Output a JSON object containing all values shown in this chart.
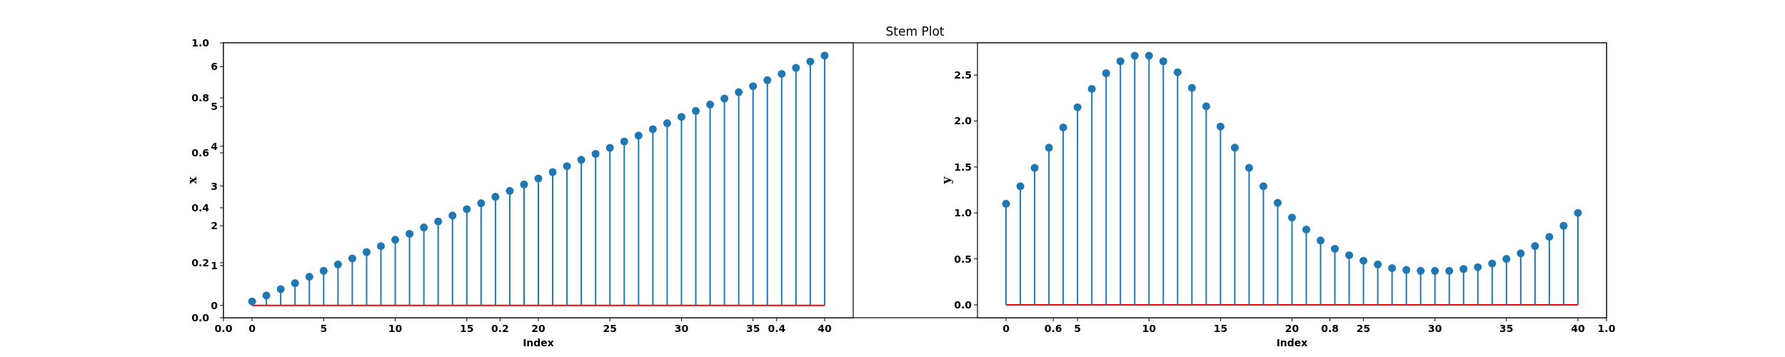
{
  "chart_data": [
    {
      "type": "scatter",
      "title": "Stem Plot",
      "xlim": [
        0,
        1
      ],
      "ylim": [
        0,
        1
      ],
      "xticks": [
        {
          "value": 0,
          "label": "0.0"
        },
        {
          "value": 0.2,
          "label": "0.2"
        },
        {
          "value": 0.4,
          "label": "0.4"
        },
        {
          "value": 0.6,
          "label": "0.6"
        },
        {
          "value": 0.8,
          "label": "0.8"
        },
        {
          "value": 1,
          "label": "1.0"
        }
      ],
      "yticks": [
        {
          "value": 0,
          "label": "0.0"
        },
        {
          "value": 0.2,
          "label": "0.2"
        },
        {
          "value": 0.4,
          "label": "0.4"
        },
        {
          "value": 0.6,
          "label": "0.6"
        },
        {
          "value": 0.8,
          "label": "0.8"
        },
        {
          "value": 1,
          "label": "1.0"
        }
      ]
    },
    {
      "type": "lollipop",
      "xlabel": "Index",
      "ylabel": "x",
      "marker": "circle",
      "x": [
        0,
        1,
        2,
        3,
        4,
        5,
        6,
        7,
        8,
        9,
        10,
        11,
        12,
        13,
        14,
        15,
        16,
        17,
        18,
        19,
        20,
        21,
        22,
        23,
        24,
        25,
        26,
        27,
        28,
        29,
        30,
        31,
        32,
        33,
        34,
        35,
        36,
        37,
        38,
        39,
        40
      ],
      "series": [
        {
          "color": "#1f77b4",
          "values": [
            0.1,
            0.25,
            0.41,
            0.56,
            0.72,
            0.87,
            1.03,
            1.18,
            1.34,
            1.49,
            1.65,
            1.8,
            1.96,
            2.11,
            2.26,
            2.42,
            2.57,
            2.73,
            2.88,
            3.04,
            3.19,
            3.35,
            3.5,
            3.66,
            3.81,
            3.96,
            4.12,
            4.27,
            4.43,
            4.58,
            4.74,
            4.89,
            5.05,
            5.2,
            5.36,
            5.51,
            5.66,
            5.82,
            5.97,
            6.13,
            6.28
          ]
        }
      ],
      "xlim": [
        -2,
        42
      ],
      "xticks": [
        0,
        5,
        10,
        15,
        20,
        25,
        30,
        35,
        40
      ],
      "ylim": [
        -0.31,
        6.6
      ],
      "yticks": [
        0,
        1,
        2,
        3,
        4,
        5,
        6
      ],
      "ref_lines": [
        {
          "axis": "y",
          "value": 0,
          "color": "#ff0000"
        }
      ]
    },
    {
      "type": "lollipop",
      "xlabel": "Index",
      "ylabel": "y",
      "marker": "circle",
      "x": [
        0,
        1,
        2,
        3,
        4,
        5,
        6,
        7,
        8,
        9,
        10,
        11,
        12,
        13,
        14,
        15,
        16,
        17,
        18,
        19,
        20,
        21,
        22,
        23,
        24,
        25,
        26,
        27,
        28,
        29,
        30,
        31,
        32,
        33,
        34,
        35,
        36,
        37,
        38,
        39,
        40
      ],
      "series": [
        {
          "color": "#1f77b4",
          "values": [
            1.1,
            1.29,
            1.49,
            1.71,
            1.93,
            2.15,
            2.35,
            2.52,
            2.65,
            2.71,
            2.71,
            2.65,
            2.53,
            2.36,
            2.16,
            1.94,
            1.71,
            1.49,
            1.29,
            1.11,
            0.95,
            0.82,
            0.7,
            0.61,
            0.54,
            0.48,
            0.44,
            0.4,
            0.38,
            0.37,
            0.37,
            0.37,
            0.39,
            0.41,
            0.45,
            0.5,
            0.56,
            0.64,
            0.74,
            0.86,
            1.0
          ]
        }
      ],
      "xlim": [
        -2,
        42
      ],
      "xticks": [
        0,
        5,
        10,
        15,
        20,
        25,
        30,
        35,
        40
      ],
      "ylim": [
        -0.14,
        2.85
      ],
      "yticks": [
        {
          "value": 0,
          "label": "0.0"
        },
        {
          "value": 0.5,
          "label": "0.5"
        },
        {
          "value": 1,
          "label": "1.0"
        },
        {
          "value": 1.5,
          "label": "1.5"
        },
        {
          "value": 2,
          "label": "2.0"
        },
        {
          "value": 2.5,
          "label": "2.5"
        }
      ],
      "ref_lines": [
        {
          "axis": "y",
          "value": 0,
          "color": "#ff0000"
        }
      ]
    }
  ]
}
